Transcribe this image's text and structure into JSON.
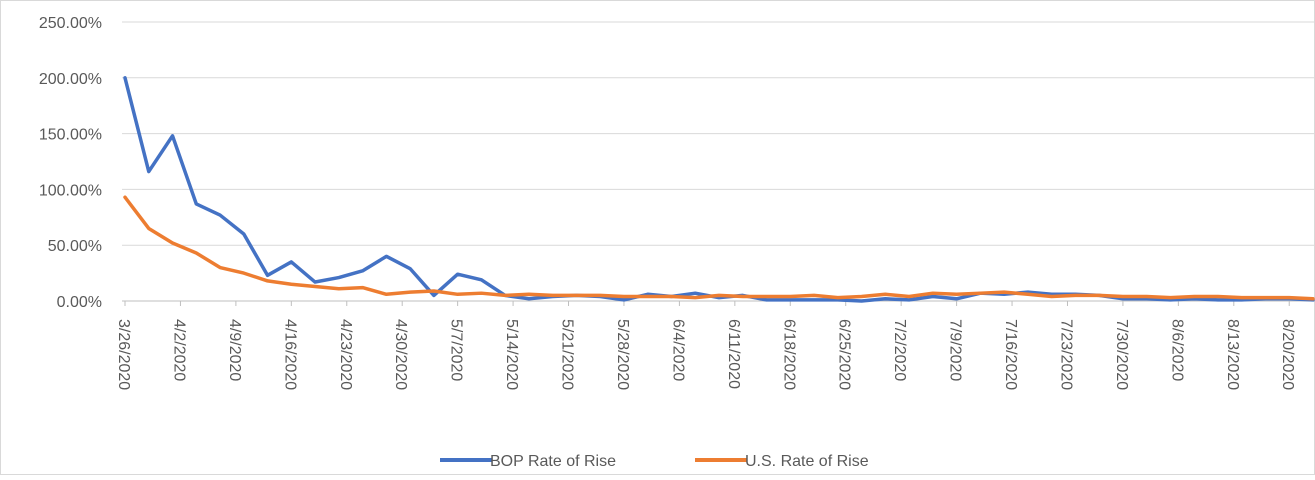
{
  "chart_data": {
    "type": "line",
    "x": [
      "3/26/2020",
      "3/29/2020",
      "4/1/2020",
      "4/4/2020",
      "4/7/2020",
      "4/10/2020",
      "4/13/2020",
      "4/16/2020",
      "4/19/2020",
      "4/22/2020",
      "4/25/2020",
      "4/28/2020",
      "5/1/2020",
      "5/4/2020",
      "5/7/2020",
      "5/10/2020",
      "5/13/2020",
      "5/16/2020",
      "5/19/2020",
      "5/22/2020",
      "5/25/2020",
      "5/28/2020",
      "5/31/2020",
      "6/3/2020",
      "6/6/2020",
      "6/9/2020",
      "6/12/2020",
      "6/15/2020",
      "6/18/2020",
      "6/21/2020",
      "6/24/2020",
      "6/27/2020",
      "6/30/2020",
      "7/3/2020",
      "7/6/2020",
      "7/9/2020",
      "7/12/2020",
      "7/15/2020",
      "7/18/2020",
      "7/21/2020",
      "7/24/2020",
      "7/27/2020",
      "7/30/2020",
      "8/2/2020",
      "8/5/2020",
      "8/8/2020",
      "8/11/2020",
      "8/14/2020",
      "8/17/2020",
      "8/20/2020",
      "8/23/2020"
    ],
    "series": [
      {
        "name": "BOP Rate of Rise",
        "color": "#4472c4",
        "values": [
          200,
          116,
          148,
          87,
          77,
          60,
          23,
          35,
          17,
          21,
          27,
          40,
          29,
          5,
          24,
          19,
          5,
          2,
          4,
          5,
          4,
          1,
          6,
          4,
          7,
          3,
          5,
          1,
          1,
          1,
          1,
          0,
          2,
          1,
          4,
          2,
          7,
          6,
          8,
          6,
          6,
          5,
          2,
          2,
          1,
          2,
          1,
          1,
          2,
          2,
          1
        ]
      },
      {
        "name": "U.S. Rate of Rise",
        "color": "#ed7d31",
        "values": [
          93,
          65,
          52,
          43,
          30,
          25,
          18,
          15,
          13,
          11,
          12,
          6,
          8,
          9,
          6,
          7,
          5,
          6,
          5,
          5,
          5,
          4,
          4,
          4,
          3,
          5,
          4,
          4,
          4,
          5,
          3,
          4,
          6,
          4,
          7,
          6,
          7,
          8,
          6,
          4,
          5,
          5,
          4,
          4,
          3,
          4,
          4,
          3,
          3,
          3,
          2
        ]
      }
    ],
    "xlim": [
      "3/26/2020",
      "8/23/2020"
    ],
    "xticks": [
      "3/26/2020",
      "4/2/2020",
      "4/9/2020",
      "4/16/2020",
      "4/23/2020",
      "4/30/2020",
      "5/7/2020",
      "5/14/2020",
      "5/21/2020",
      "5/28/2020",
      "6/4/2020",
      "6/11/2020",
      "6/18/2020",
      "6/25/2020",
      "7/2/2020",
      "7/9/2020",
      "7/16/2020",
      "7/23/2020",
      "7/30/2020",
      "8/6/2020",
      "8/13/2020",
      "8/20/2020"
    ],
    "ylim": [
      0,
      250
    ],
    "yticks": [
      {
        "value": 0,
        "label": "0.00%"
      },
      {
        "value": 50,
        "label": "50.00%"
      },
      {
        "value": 100,
        "label": "100.00%"
      },
      {
        "value": 150,
        "label": "150.00%"
      },
      {
        "value": 200,
        "label": "200.00%"
      },
      {
        "value": 250,
        "label": "250.00%"
      }
    ],
    "grid": true,
    "legend": "bottom"
  }
}
